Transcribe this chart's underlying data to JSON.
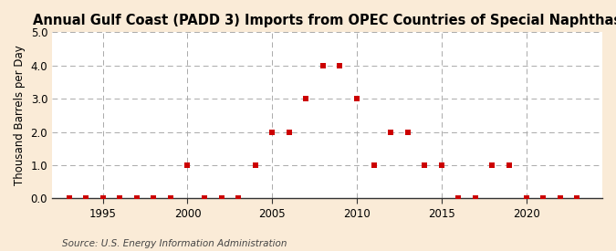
{
  "title": "Annual Gulf Coast (PADD 3) Imports from OPEC Countries of Special Naphthas",
  "ylabel": "Thousand Barrels per Day",
  "source": "Source: U.S. Energy Information Administration",
  "background_color": "#faebd7",
  "plot_background_color": "#ffffff",
  "marker_color": "#cc0000",
  "grid_color": "#aaaaaa",
  "years": [
    1993,
    1994,
    1995,
    1996,
    1997,
    1998,
    1999,
    2000,
    2001,
    2002,
    2003,
    2004,
    2005,
    2006,
    2007,
    2008,
    2009,
    2010,
    2011,
    2012,
    2013,
    2014,
    2015,
    2016,
    2017,
    2018,
    2019,
    2020,
    2021,
    2022,
    2023
  ],
  "values": [
    0.0,
    0.0,
    0.0,
    0.0,
    0.0,
    0.0,
    0.0,
    1.0,
    0.0,
    0.0,
    0.0,
    1.0,
    2.0,
    2.0,
    3.0,
    4.0,
    4.0,
    3.0,
    1.0,
    2.0,
    2.0,
    1.0,
    1.0,
    0.0,
    0.0,
    1.0,
    1.0,
    0.0,
    0.0,
    0.0,
    0.0
  ],
  "xlim": [
    1992.0,
    2024.5
  ],
  "ylim": [
    0.0,
    5.0
  ],
  "yticks": [
    0.0,
    1.0,
    2.0,
    3.0,
    4.0,
    5.0
  ],
  "xticks": [
    1995,
    2000,
    2005,
    2010,
    2015,
    2020
  ],
  "title_fontsize": 10.5,
  "label_fontsize": 8.5,
  "tick_fontsize": 8.5,
  "source_fontsize": 7.5,
  "marker_size": 18
}
